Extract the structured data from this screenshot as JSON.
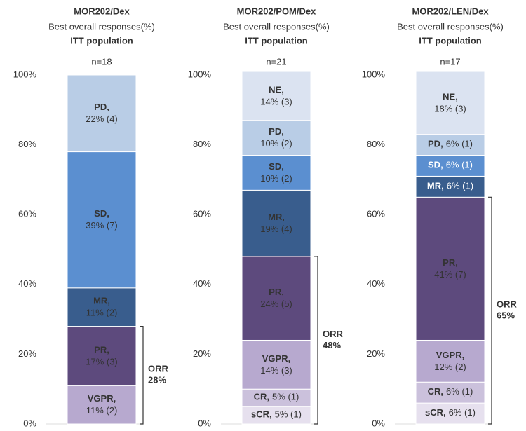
{
  "chart_data": [
    {
      "type": "stacked_bar",
      "title": "MOR202/Dex",
      "subtitle": "Best overall responses(%)",
      "population": "ITT population",
      "n_label": "n=18",
      "ylim": [
        0,
        100
      ],
      "yticks": [
        {
          "value": 0,
          "label": "0%"
        },
        {
          "value": 20,
          "label": "20%"
        },
        {
          "value": 40,
          "label": "40%"
        },
        {
          "value": 60,
          "label": "60%"
        },
        {
          "value": 80,
          "label": "80%"
        },
        {
          "value": 100,
          "label": "100%"
        }
      ],
      "series": [
        {
          "name": "VGPR,",
          "color": "#b7a9cf",
          "values": [
            11
          ],
          "value_labels": [
            "11% (2)"
          ]
        },
        {
          "name": "PR,",
          "color": "#5d4a7d",
          "values": [
            17
          ],
          "value_labels": [
            "17% (3)"
          ]
        },
        {
          "name": "MR,",
          "color": "#395d8d",
          "values": [
            11
          ],
          "value_labels": [
            "11% (2)"
          ]
        },
        {
          "name": "SD,",
          "color": "#5b8fd0",
          "values": [
            39
          ],
          "value_labels": [
            "39% (7)"
          ]
        },
        {
          "name": "PD,",
          "color": "#b9cde6",
          "values": [
            22
          ],
          "value_labels": [
            "22% (4)"
          ]
        }
      ],
      "bracket": {
        "label": "ORR",
        "value": 28,
        "value_label": "28%"
      }
    },
    {
      "type": "stacked_bar",
      "title": "MOR202/POM/Dex",
      "subtitle": "Best overall responses(%)",
      "population": "ITT population",
      "n_label": "n=21",
      "ylim": [
        0,
        100
      ],
      "yticks": [
        {
          "value": 0,
          "label": "0%"
        },
        {
          "value": 20,
          "label": "20%"
        },
        {
          "value": 40,
          "label": "40%"
        },
        {
          "value": 60,
          "label": "60%"
        },
        {
          "value": 80,
          "label": "80%"
        },
        {
          "value": 100,
          "label": "100%"
        }
      ],
      "series": [
        {
          "name": "sCR,",
          "color": "#e6e0ee",
          "values": [
            5
          ],
          "value_labels": [
            "5% (1)"
          ]
        },
        {
          "name": "CR,",
          "color": "#cbc1dc",
          "values": [
            5
          ],
          "value_labels": [
            "5% (1)"
          ]
        },
        {
          "name": "VGPR,",
          "color": "#b7a9cf",
          "values": [
            14
          ],
          "value_labels": [
            "14% (3)"
          ]
        },
        {
          "name": "PR,",
          "color": "#5d4a7d",
          "values": [
            24
          ],
          "value_labels": [
            "24% (5)"
          ]
        },
        {
          "name": "MR,",
          "color": "#395d8d",
          "values": [
            19
          ],
          "value_labels": [
            "19% (4)"
          ]
        },
        {
          "name": "SD,",
          "color": "#5b8fd0",
          "values": [
            10
          ],
          "value_labels": [
            "10% (2)"
          ]
        },
        {
          "name": "PD,",
          "color": "#b9cde6",
          "values": [
            10
          ],
          "value_labels": [
            "10% (2)"
          ]
        },
        {
          "name": "NE,",
          "color": "#dbe3f1",
          "values": [
            14
          ],
          "value_labels": [
            "14% (3)"
          ]
        }
      ],
      "bracket": {
        "label": "ORR",
        "value": 48,
        "value_label": "48%"
      }
    },
    {
      "type": "stacked_bar",
      "title": "MOR202/LEN/Dex",
      "subtitle": "Best overall responses(%)",
      "population": "ITT population",
      "n_label": "n=17",
      "ylim": [
        0,
        100
      ],
      "yticks": [
        {
          "value": 0,
          "label": "0%"
        },
        {
          "value": 20,
          "label": "20%"
        },
        {
          "value": 40,
          "label": "40%"
        },
        {
          "value": 60,
          "label": "60%"
        },
        {
          "value": 80,
          "label": "80%"
        },
        {
          "value": 100,
          "label": "100%"
        }
      ],
      "series": [
        {
          "name": "sCR,",
          "color": "#e6e0ee",
          "values": [
            6
          ],
          "value_labels": [
            "6% (1)"
          ]
        },
        {
          "name": "CR,",
          "color": "#cbc1dc",
          "values": [
            6
          ],
          "value_labels": [
            "6% (1)"
          ]
        },
        {
          "name": "VGPR,",
          "color": "#b7a9cf",
          "values": [
            12
          ],
          "value_labels": [
            "12% (2)"
          ]
        },
        {
          "name": "PR,",
          "color": "#5d4a7d",
          "values": [
            41
          ],
          "value_labels": [
            "41% (7)"
          ]
        },
        {
          "name": "MR,",
          "color": "#395d8d",
          "values": [
            6
          ],
          "value_labels": [
            "6% (1)"
          ]
        },
        {
          "name": "SD,",
          "color": "#5b8fd0",
          "values": [
            6
          ],
          "value_labels": [
            "6% (1)"
          ]
        },
        {
          "name": "PD,",
          "color": "#b9cde6",
          "values": [
            6
          ],
          "value_labels": [
            "6% (1)"
          ]
        },
        {
          "name": "NE,",
          "color": "#dbe3f1",
          "values": [
            18
          ],
          "value_labels": [
            "18% (3)"
          ]
        }
      ],
      "bracket": {
        "label": "ORR",
        "value": 65,
        "value_label": "65%"
      }
    }
  ]
}
